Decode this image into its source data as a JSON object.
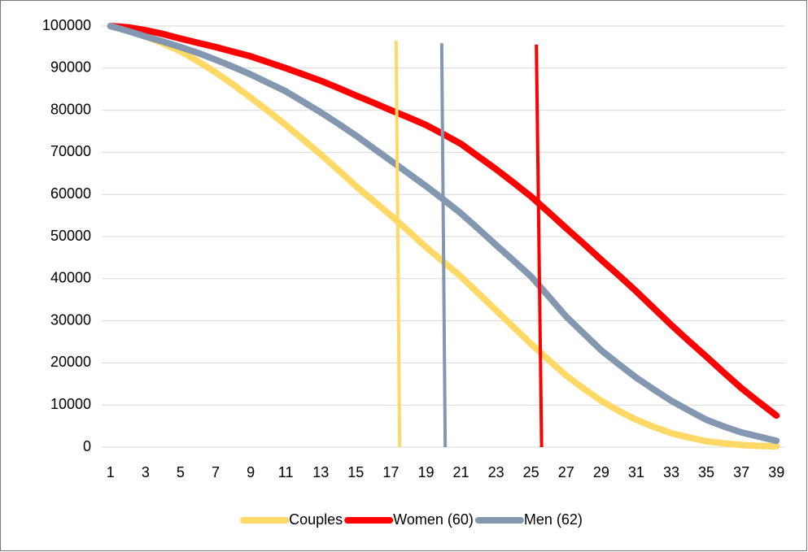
{
  "chart_data": {
    "type": "line",
    "x": [
      1,
      2,
      3,
      4,
      5,
      6,
      7,
      8,
      9,
      10,
      11,
      12,
      13,
      14,
      15,
      16,
      17,
      18,
      19,
      20,
      21,
      22,
      23,
      24,
      25,
      26,
      27,
      28,
      29,
      30,
      31,
      32,
      33,
      34,
      35,
      36,
      37,
      38,
      39
    ],
    "xlim": [
      0.5,
      39.5
    ],
    "xticks": [
      1,
      3,
      5,
      7,
      9,
      11,
      13,
      15,
      17,
      19,
      21,
      23,
      25,
      27,
      29,
      31,
      33,
      35,
      37,
      39
    ],
    "ylim": [
      0,
      100000
    ],
    "yticks": [
      0,
      10000,
      20000,
      30000,
      40000,
      50000,
      60000,
      70000,
      80000,
      90000,
      100000
    ],
    "grid": true,
    "legend": "bottom",
    "series": [
      {
        "name": "Couples",
        "color": "#FFD966",
        "values": [
          100000,
          98900,
          97500,
          95900,
          94000,
          91600,
          89000,
          86100,
          83000,
          79800,
          76500,
          73000,
          69500,
          65800,
          62000,
          58500,
          55000,
          51300,
          47500,
          44000,
          40500,
          36500,
          32500,
          28500,
          24500,
          20700,
          17000,
          13900,
          11000,
          8600,
          6500,
          4800,
          3300,
          2300,
          1400,
          900,
          500,
          300,
          200
        ]
      },
      {
        "name": "Women (60)",
        "color": "#FF0000",
        "values": [
          100000,
          99700,
          99000,
          98100,
          97000,
          96000,
          95000,
          93900,
          92800,
          91400,
          90000,
          88500,
          87000,
          85300,
          83500,
          81800,
          80000,
          78300,
          76500,
          74300,
          72000,
          69000,
          66000,
          62800,
          59500,
          55800,
          52000,
          48300,
          44500,
          40800,
          37000,
          33000,
          29000,
          25200,
          21500,
          17700,
          14000,
          10700,
          7500
        ]
      },
      {
        "name": "Men (62)",
        "color": "#8497B0",
        "values": [
          100000,
          98800,
          97500,
          96300,
          95000,
          93600,
          92000,
          90300,
          88500,
          86500,
          84500,
          82000,
          79500,
          76800,
          74000,
          71000,
          68000,
          65000,
          62000,
          58800,
          55500,
          51800,
          48000,
          44300,
          40500,
          35800,
          31000,
          27000,
          23000,
          19700,
          16500,
          13700,
          11000,
          8700,
          6500,
          4900,
          3500,
          2500,
          1500
        ]
      }
    ],
    "reference_lines": [
      {
        "color": "#FFD966",
        "x": [
          17.3,
          17.5
        ],
        "y": [
          96500,
          0
        ]
      },
      {
        "color": "#8497B0",
        "x": [
          19.9,
          20.1
        ],
        "y": [
          95900,
          0
        ]
      },
      {
        "color": "#FF0000",
        "x": [
          25.3,
          25.6
        ],
        "y": [
          95600,
          0
        ]
      }
    ]
  }
}
